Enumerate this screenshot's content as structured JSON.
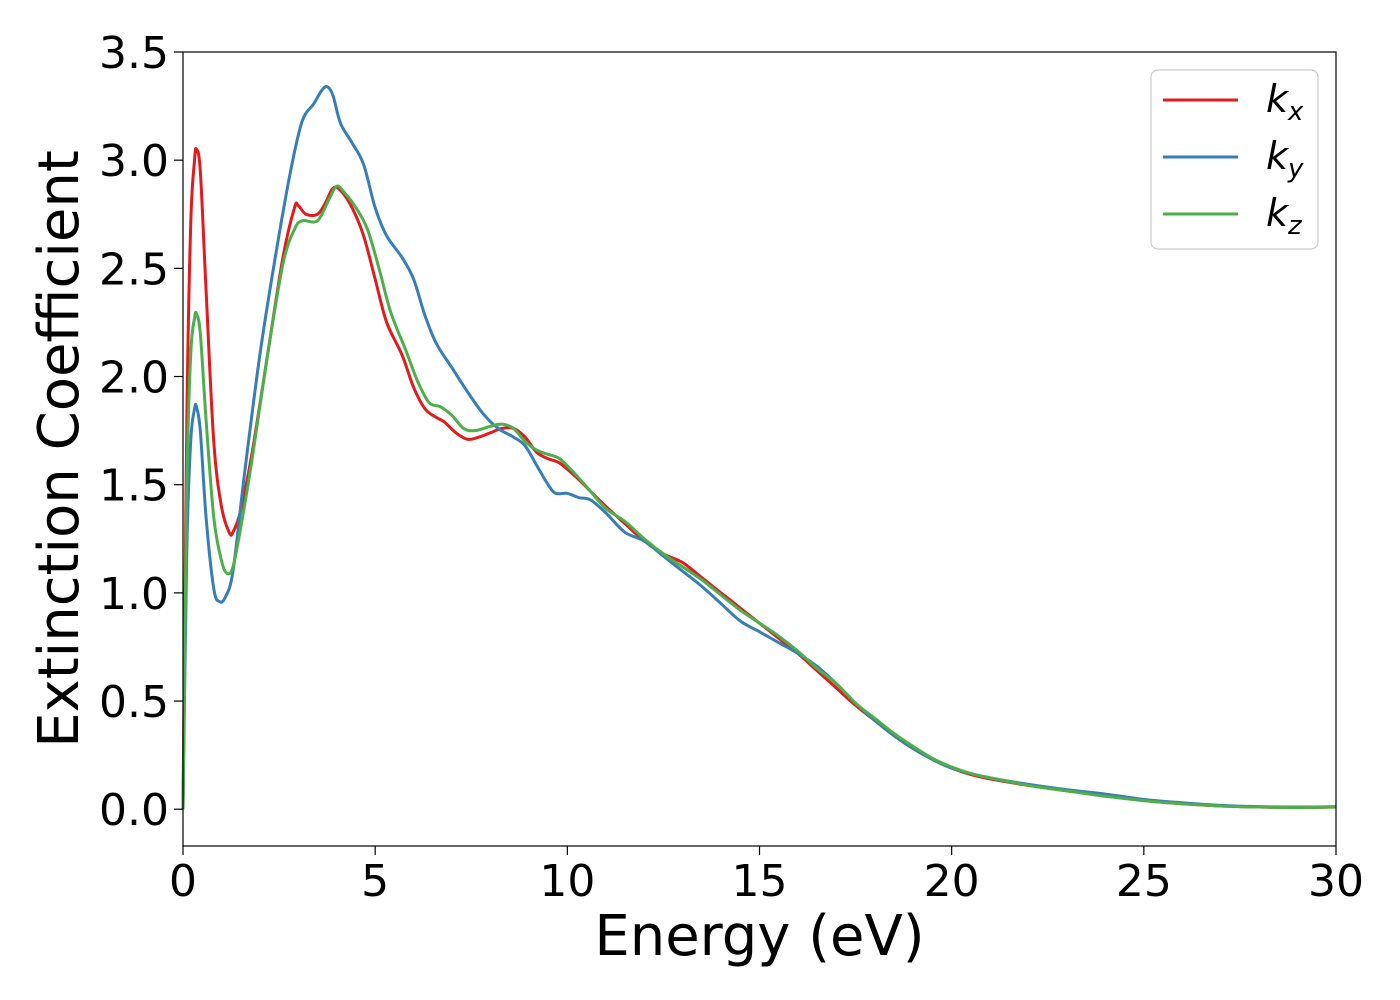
{
  "chart_data": {
    "type": "line",
    "xlabel": "Energy (eV)",
    "ylabel": "Extinction Coefficient",
    "xlim": [
      0,
      30
    ],
    "ylim": [
      -0.17,
      3.5
    ],
    "xticks": [
      0,
      5,
      10,
      15,
      20,
      25,
      30
    ],
    "xtick_labels": [
      "0",
      "5",
      "10",
      "15",
      "20",
      "25",
      "30"
    ],
    "yticks": [
      0.0,
      0.5,
      1.0,
      1.5,
      2.0,
      2.5,
      3.0,
      3.5
    ],
    "ytick_labels": [
      "0.0",
      "0.5",
      "1.0",
      "1.5",
      "2.0",
      "2.5",
      "3.0",
      "3.5"
    ],
    "grid": false,
    "legend_position": "top-right",
    "series": [
      {
        "name": "k",
        "subscript": "x",
        "color": "#e41a1c",
        "points": [
          [
            0,
            0.0
          ],
          [
            0.1,
            1.8
          ],
          [
            0.2,
            2.7
          ],
          [
            0.3,
            3.0
          ],
          [
            0.35,
            3.05
          ],
          [
            0.45,
            2.95
          ],
          [
            0.6,
            2.4
          ],
          [
            0.8,
            1.7
          ],
          [
            1.0,
            1.4
          ],
          [
            1.2,
            1.28
          ],
          [
            1.3,
            1.28
          ],
          [
            1.5,
            1.38
          ],
          [
            1.8,
            1.65
          ],
          [
            2.2,
            2.1
          ],
          [
            2.6,
            2.55
          ],
          [
            2.9,
            2.78
          ],
          [
            3.0,
            2.79
          ],
          [
            3.2,
            2.75
          ],
          [
            3.5,
            2.75
          ],
          [
            3.7,
            2.8
          ],
          [
            3.9,
            2.87
          ],
          [
            4.1,
            2.86
          ],
          [
            4.4,
            2.78
          ],
          [
            4.7,
            2.65
          ],
          [
            5.0,
            2.45
          ],
          [
            5.3,
            2.25
          ],
          [
            5.7,
            2.1
          ],
          [
            6.0,
            1.95
          ],
          [
            6.3,
            1.85
          ],
          [
            6.6,
            1.81
          ],
          [
            6.8,
            1.79
          ],
          [
            7.1,
            1.74
          ],
          [
            7.4,
            1.71
          ],
          [
            7.7,
            1.72
          ],
          [
            8.0,
            1.74
          ],
          [
            8.3,
            1.76
          ],
          [
            8.6,
            1.76
          ],
          [
            8.9,
            1.72
          ],
          [
            9.2,
            1.65
          ],
          [
            9.5,
            1.62
          ],
          [
            9.8,
            1.6
          ],
          [
            10.2,
            1.54
          ],
          [
            10.6,
            1.47
          ],
          [
            11.0,
            1.4
          ],
          [
            11.5,
            1.32
          ],
          [
            12.0,
            1.24
          ],
          [
            12.5,
            1.18
          ],
          [
            13.0,
            1.14
          ],
          [
            13.5,
            1.07
          ],
          [
            14.0,
            1.0
          ],
          [
            14.5,
            0.93
          ],
          [
            15.0,
            0.86
          ],
          [
            15.5,
            0.79
          ],
          [
            16.0,
            0.72
          ],
          [
            16.5,
            0.64
          ],
          [
            17.0,
            0.56
          ],
          [
            17.5,
            0.48
          ],
          [
            18.0,
            0.41
          ],
          [
            18.5,
            0.34
          ],
          [
            19.0,
            0.28
          ],
          [
            19.5,
            0.23
          ],
          [
            20.0,
            0.19
          ],
          [
            20.5,
            0.16
          ],
          [
            21.0,
            0.14
          ],
          [
            22.0,
            0.11
          ],
          [
            23.0,
            0.085
          ],
          [
            24.0,
            0.065
          ],
          [
            25.0,
            0.04
          ],
          [
            26.0,
            0.025
          ],
          [
            27.0,
            0.015
          ],
          [
            28.0,
            0.01
          ],
          [
            29.0,
            0.008
          ],
          [
            30.0,
            0.01
          ]
        ]
      },
      {
        "name": "k",
        "subscript": "y",
        "color": "#377eb8",
        "points": [
          [
            0,
            0.0
          ],
          [
            0.1,
            1.2
          ],
          [
            0.2,
            1.7
          ],
          [
            0.3,
            1.85
          ],
          [
            0.35,
            1.86
          ],
          [
            0.45,
            1.75
          ],
          [
            0.6,
            1.35
          ],
          [
            0.8,
            1.02
          ],
          [
            0.95,
            0.96
          ],
          [
            1.1,
            0.98
          ],
          [
            1.3,
            1.1
          ],
          [
            1.6,
            1.55
          ],
          [
            2.0,
            2.1
          ],
          [
            2.4,
            2.55
          ],
          [
            2.8,
            2.95
          ],
          [
            3.1,
            3.18
          ],
          [
            3.4,
            3.26
          ],
          [
            3.6,
            3.32
          ],
          [
            3.75,
            3.34
          ],
          [
            3.9,
            3.3
          ],
          [
            4.1,
            3.17
          ],
          [
            4.4,
            3.08
          ],
          [
            4.7,
            2.98
          ],
          [
            5.0,
            2.78
          ],
          [
            5.3,
            2.65
          ],
          [
            5.7,
            2.55
          ],
          [
            6.0,
            2.45
          ],
          [
            6.3,
            2.28
          ],
          [
            6.6,
            2.15
          ],
          [
            7.0,
            2.04
          ],
          [
            7.4,
            1.93
          ],
          [
            7.8,
            1.83
          ],
          [
            8.2,
            1.76
          ],
          [
            8.6,
            1.72
          ],
          [
            8.9,
            1.68
          ],
          [
            9.2,
            1.59
          ],
          [
            9.5,
            1.5
          ],
          [
            9.7,
            1.46
          ],
          [
            10.0,
            1.46
          ],
          [
            10.3,
            1.44
          ],
          [
            10.6,
            1.43
          ],
          [
            11.0,
            1.37
          ],
          [
            11.5,
            1.28
          ],
          [
            12.0,
            1.24
          ],
          [
            12.5,
            1.17
          ],
          [
            13.0,
            1.1
          ],
          [
            13.5,
            1.03
          ],
          [
            14.0,
            0.95
          ],
          [
            14.5,
            0.87
          ],
          [
            15.0,
            0.82
          ],
          [
            15.5,
            0.77
          ],
          [
            16.0,
            0.72
          ],
          [
            16.5,
            0.66
          ],
          [
            17.0,
            0.58
          ],
          [
            17.5,
            0.49
          ],
          [
            18.0,
            0.41
          ],
          [
            18.5,
            0.34
          ],
          [
            19.0,
            0.28
          ],
          [
            19.5,
            0.23
          ],
          [
            20.0,
            0.19
          ],
          [
            20.5,
            0.165
          ],
          [
            21.0,
            0.145
          ],
          [
            22.0,
            0.115
          ],
          [
            23.0,
            0.09
          ],
          [
            24.0,
            0.07
          ],
          [
            25.0,
            0.045
          ],
          [
            26.0,
            0.03
          ],
          [
            27.0,
            0.018
          ],
          [
            28.0,
            0.012
          ],
          [
            29.0,
            0.01
          ],
          [
            30.0,
            0.012
          ]
        ]
      },
      {
        "name": "k",
        "subscript": "z",
        "color": "#4daf4a",
        "points": [
          [
            0,
            0.0
          ],
          [
            0.1,
            1.5
          ],
          [
            0.2,
            2.1
          ],
          [
            0.3,
            2.27
          ],
          [
            0.35,
            2.29
          ],
          [
            0.45,
            2.2
          ],
          [
            0.6,
            1.8
          ],
          [
            0.8,
            1.35
          ],
          [
            1.0,
            1.15
          ],
          [
            1.15,
            1.09
          ],
          [
            1.3,
            1.12
          ],
          [
            1.5,
            1.3
          ],
          [
            1.8,
            1.62
          ],
          [
            2.2,
            2.1
          ],
          [
            2.6,
            2.52
          ],
          [
            2.9,
            2.68
          ],
          [
            3.1,
            2.72
          ],
          [
            3.5,
            2.72
          ],
          [
            3.8,
            2.82
          ],
          [
            4.0,
            2.88
          ],
          [
            4.2,
            2.85
          ],
          [
            4.5,
            2.78
          ],
          [
            4.8,
            2.68
          ],
          [
            5.1,
            2.5
          ],
          [
            5.4,
            2.3
          ],
          [
            5.8,
            2.12
          ],
          [
            6.1,
            1.98
          ],
          [
            6.4,
            1.88
          ],
          [
            6.7,
            1.86
          ],
          [
            7.0,
            1.82
          ],
          [
            7.3,
            1.76
          ],
          [
            7.6,
            1.75
          ],
          [
            8.0,
            1.77
          ],
          [
            8.3,
            1.78
          ],
          [
            8.6,
            1.76
          ],
          [
            8.9,
            1.7
          ],
          [
            9.2,
            1.66
          ],
          [
            9.5,
            1.64
          ],
          [
            9.8,
            1.62
          ],
          [
            10.2,
            1.55
          ],
          [
            10.6,
            1.47
          ],
          [
            11.0,
            1.39
          ],
          [
            11.5,
            1.33
          ],
          [
            12.0,
            1.25
          ],
          [
            12.5,
            1.18
          ],
          [
            13.0,
            1.12
          ],
          [
            13.5,
            1.06
          ],
          [
            14.0,
            0.99
          ],
          [
            14.5,
            0.92
          ],
          [
            15.0,
            0.86
          ],
          [
            15.5,
            0.8
          ],
          [
            16.0,
            0.73
          ],
          [
            16.5,
            0.65
          ],
          [
            17.0,
            0.58
          ],
          [
            17.5,
            0.49
          ],
          [
            18.0,
            0.42
          ],
          [
            18.5,
            0.35
          ],
          [
            19.0,
            0.29
          ],
          [
            19.5,
            0.235
          ],
          [
            20.0,
            0.195
          ],
          [
            20.5,
            0.165
          ],
          [
            21.0,
            0.145
          ],
          [
            22.0,
            0.11
          ],
          [
            23.0,
            0.085
          ],
          [
            24.0,
            0.06
          ],
          [
            25.0,
            0.04
          ],
          [
            26.0,
            0.025
          ],
          [
            27.0,
            0.015
          ],
          [
            28.0,
            0.01
          ],
          [
            29.0,
            0.008
          ],
          [
            30.0,
            0.01
          ]
        ]
      }
    ]
  }
}
